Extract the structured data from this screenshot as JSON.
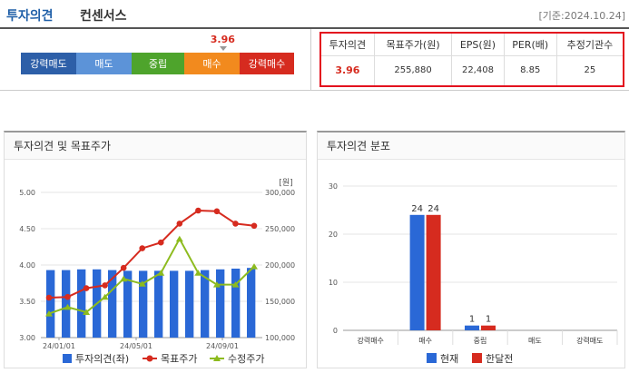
{
  "header": {
    "title_main": "투자의견",
    "title_sub": "컨센서스",
    "date": "[기준:2024.10.24]"
  },
  "rating_scale": {
    "indicator_value": "3.96",
    "indicator_fraction": 0.74,
    "segments": [
      {
        "label": "강력매도",
        "color": "#2d5fa8"
      },
      {
        "label": "매도",
        "color": "#5c93d8"
      },
      {
        "label": "중립",
        "color": "#4ea42c"
      },
      {
        "label": "매수",
        "color": "#f28a1e"
      },
      {
        "label": "강력매수",
        "color": "#d62b1f"
      }
    ]
  },
  "summary_table": {
    "headers": [
      "투자의견",
      "목표주가(원)",
      "EPS(원)",
      "PER(배)",
      "추정기관수"
    ],
    "values": [
      "3.96",
      "255,880",
      "22,408",
      "8.85",
      "25"
    ]
  },
  "left_panel": {
    "title": "투자의견 및 목표주가",
    "unit": "[원]",
    "legend": [
      "투자의견(좌)",
      "목표주가",
      "수정주가"
    ]
  },
  "right_panel": {
    "title": "투자의견 분포",
    "legend": [
      "현재",
      "한달전"
    ]
  },
  "colors": {
    "accent": "#1f5fa8",
    "red": "#d62b1f",
    "bar_blue": "#2a68d6",
    "price_green": "#8dbb1e"
  },
  "chart_data": [
    {
      "type": "bar",
      "title": "투자의견 및 목표주가",
      "x_ticks": [
        "24/01/01",
        "24/05/01",
        "24/09/01"
      ],
      "ylim_left": [
        3.0,
        5.0
      ],
      "y_ticks_left": [
        "5.00",
        "4.50",
        "4.00",
        "3.50",
        "3.00"
      ],
      "ylim_right": [
        100000,
        300000
      ],
      "y_ticks_right": [
        "300,000",
        "250,000",
        "200,000",
        "150,000",
        "100,000"
      ],
      "series": [
        {
          "name": "투자의견(좌)",
          "type": "bar",
          "axis": "left",
          "values": [
            3.93,
            3.93,
            3.94,
            3.94,
            3.93,
            3.92,
            3.92,
            3.92,
            3.92,
            3.92,
            3.93,
            3.94,
            3.95,
            3.96
          ]
        },
        {
          "name": "목표주가",
          "type": "line",
          "axis": "right",
          "values": [
            155000,
            156000,
            168000,
            172000,
            196000,
            223000,
            231000,
            257000,
            275000,
            274000,
            257000,
            254000
          ]
        },
        {
          "name": "수정주가",
          "type": "line",
          "axis": "right",
          "values": [
            133000,
            142000,
            135000,
            156000,
            181000,
            174000,
            189000,
            236000,
            189000,
            173000,
            173000,
            198000
          ]
        }
      ]
    },
    {
      "type": "bar",
      "title": "투자의견 분포",
      "categories": [
        "강력매수",
        "매수",
        "중립",
        "매도",
        "강력매도"
      ],
      "ylim": [
        0,
        30
      ],
      "y_ticks": [
        "30",
        "20",
        "10",
        "0"
      ],
      "series": [
        {
          "name": "현재",
          "color": "#2a68d6",
          "values": [
            0,
            24,
            1,
            0,
            0
          ]
        },
        {
          "name": "한달전",
          "color": "#d62b1f",
          "values": [
            0,
            24,
            1,
            0,
            0
          ]
        }
      ]
    }
  ]
}
